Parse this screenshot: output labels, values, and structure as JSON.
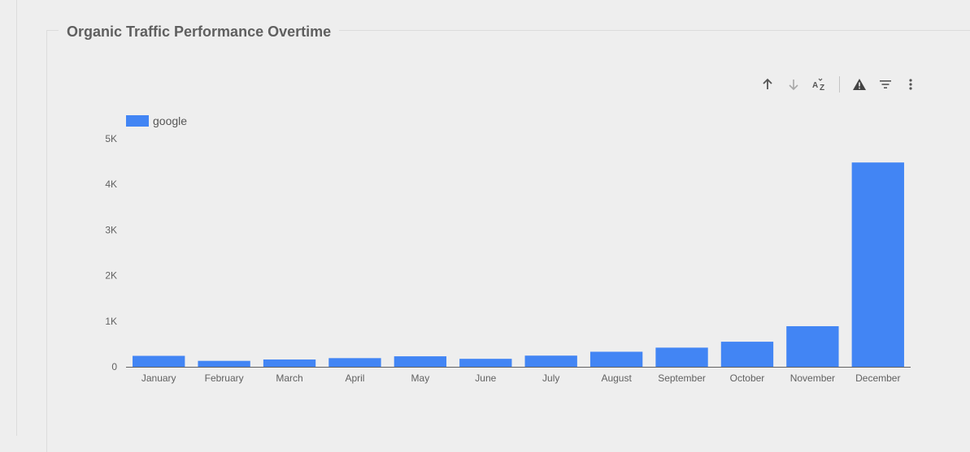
{
  "panel": {
    "title": "Organic Traffic Performance Overtime"
  },
  "toolbar": {
    "icons": [
      "arrow-up-icon",
      "arrow-down-icon",
      "sort-az-icon",
      "warning-icon",
      "filter-icon",
      "more-vert-icon"
    ]
  },
  "colors": {
    "bar": "#4285f4",
    "text": "#616161",
    "axis": "#616161"
  },
  "chart_data": {
    "type": "bar",
    "categories": [
      "January",
      "February",
      "March",
      "April",
      "May",
      "June",
      "July",
      "August",
      "September",
      "October",
      "November",
      "December"
    ],
    "series": [
      {
        "name": "google",
        "values": [
          240,
          130,
          160,
          190,
          230,
          175,
          245,
          330,
          420,
          550,
          890,
          4480
        ]
      }
    ],
    "ylim": [
      0,
      5000
    ],
    "yticks": [
      0,
      1000,
      2000,
      3000,
      4000,
      5000
    ],
    "ytick_labels": [
      "0",
      "1K",
      "2K",
      "3K",
      "4K",
      "5K"
    ],
    "legend": "top-left",
    "grid": false
  }
}
